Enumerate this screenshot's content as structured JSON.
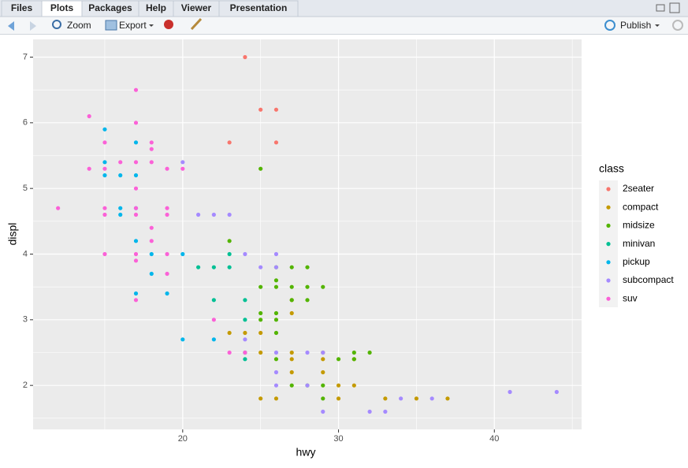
{
  "ui": {
    "tabs": [
      "Files",
      "Plots",
      "Packages",
      "Help",
      "Viewer",
      "Presentation"
    ],
    "active_tab": 1,
    "toolbar": {
      "zoom": "Zoom",
      "export": "Export",
      "publish": "Publish"
    }
  },
  "chart_data": {
    "type": "scatter",
    "x_label": "hwy",
    "y_label": "displ",
    "xlim": [
      10.4,
      45.6
    ],
    "ylim": [
      1.33,
      7.27
    ],
    "xticks": [
      20,
      30,
      40
    ],
    "yticks": [
      2,
      3,
      4,
      5,
      6,
      7
    ],
    "grid": true,
    "legend_title": "class",
    "legend_position": "right",
    "series": [
      {
        "name": "2seater",
        "color": "#F8766D",
        "x": [
          24,
          25,
          26,
          23,
          26
        ],
        "values": [
          7.0,
          6.2,
          6.2,
          5.7,
          5.7
        ]
      },
      {
        "name": "compact",
        "color": "#C49A00",
        "x": [
          25,
          26,
          30,
          33,
          35,
          37,
          30,
          31,
          27,
          29,
          27,
          29,
          31,
          25,
          27,
          29,
          23,
          24,
          25,
          27,
          27
        ],
        "values": [
          1.8,
          1.8,
          1.8,
          1.8,
          1.8,
          1.8,
          2.0,
          2.0,
          2.2,
          2.2,
          2.4,
          2.4,
          2.4,
          2.5,
          2.5,
          2.5,
          2.8,
          2.8,
          2.8,
          3.1,
          3.3
        ]
      },
      {
        "name": "midsize",
        "color": "#53B400",
        "x": [
          25,
          23,
          26,
          25,
          26,
          27,
          28,
          29,
          26,
          27,
          28,
          27,
          28,
          25,
          26,
          25,
          26,
          26,
          31,
          32,
          30,
          31,
          26,
          27,
          28,
          29,
          29
        ],
        "values": [
          5.3,
          4.2,
          3.6,
          3.5,
          3.5,
          3.5,
          3.5,
          3.5,
          3.8,
          3.8,
          3.8,
          3.3,
          3.3,
          3.1,
          3.1,
          3.0,
          3.0,
          2.8,
          2.5,
          2.5,
          2.4,
          2.4,
          2.4,
          2.0,
          2.0,
          2.0,
          1.8
        ]
      },
      {
        "name": "minivan",
        "color": "#00C094",
        "x": [
          21,
          22,
          23,
          23,
          22,
          24,
          24,
          24,
          24
        ],
        "values": [
          3.8,
          3.8,
          3.8,
          4.0,
          3.3,
          3.3,
          3.0,
          2.5,
          2.4
        ]
      },
      {
        "name": "pickup",
        "color": "#00B6EB",
        "x": [
          15,
          17,
          15,
          15,
          16,
          17,
          16,
          17,
          17,
          18,
          20,
          18,
          17,
          19,
          20,
          22,
          16
        ],
        "values": [
          5.9,
          5.7,
          5.4,
          5.2,
          5.2,
          5.2,
          4.7,
          4.7,
          4.2,
          4.0,
          4.0,
          3.7,
          3.4,
          3.4,
          2.7,
          2.7,
          4.6
        ]
      },
      {
        "name": "subcompact",
        "color": "#A58AFF",
        "x": [
          20,
          21,
          22,
          23,
          24,
          26,
          25,
          26,
          24,
          26,
          28,
          29,
          26,
          26,
          28,
          29,
          32,
          33,
          34,
          36,
          41,
          44
        ],
        "values": [
          5.4,
          4.6,
          4.6,
          4.6,
          4.0,
          4.0,
          3.8,
          3.8,
          2.7,
          2.5,
          2.5,
          2.5,
          2.2,
          2.0,
          2.0,
          1.6,
          1.6,
          1.6,
          1.8,
          1.8,
          1.9,
          1.9
        ]
      },
      {
        "name": "suv",
        "color": "#FB61D7",
        "x": [
          14,
          17,
          17,
          18,
          18,
          15,
          14,
          15,
          16,
          17,
          18,
          19,
          20,
          12,
          15,
          15,
          17,
          17,
          17,
          19,
          19,
          18,
          18,
          15,
          17,
          17,
          19,
          19,
          17,
          22,
          23,
          24
        ],
        "values": [
          6.1,
          6.5,
          6.0,
          5.7,
          5.6,
          5.7,
          5.3,
          5.3,
          5.4,
          5.4,
          5.4,
          5.3,
          5.3,
          4.7,
          4.7,
          4.6,
          4.7,
          4.6,
          5.0,
          4.7,
          4.6,
          4.4,
          4.2,
          4.0,
          4.0,
          3.9,
          4.0,
          3.7,
          3.3,
          3.0,
          2.5,
          2.5
        ]
      }
    ]
  }
}
